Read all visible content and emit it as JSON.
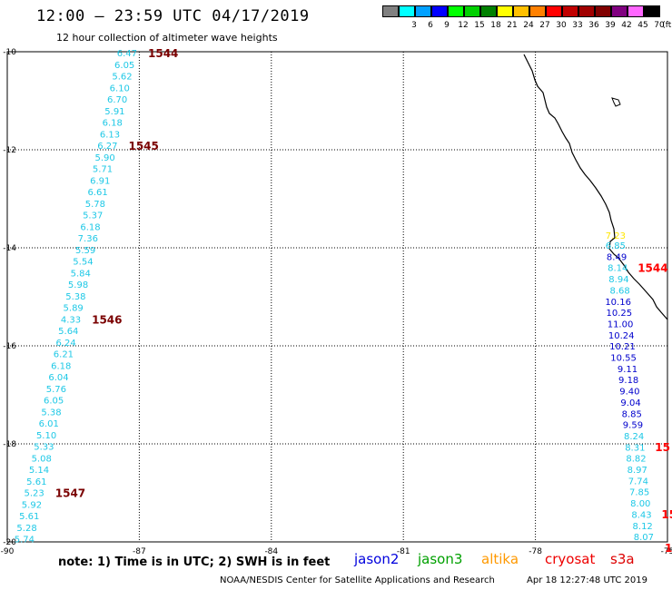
{
  "title": "12:00 – 23:59 UTC 04/17/2019",
  "subtitle": "12 hour collection of altimeter wave heights",
  "colorbar": {
    "unit": "(ft)",
    "colors": [
      "#808080",
      "#00ffff",
      "#00a0ff",
      "#0000ff",
      "#00ff00",
      "#00d000",
      "#008000",
      "#ffff00",
      "#ffc000",
      "#ff8000",
      "#ff0000",
      "#c00000",
      "#a00000",
      "#800000",
      "#800080",
      "#ff66ff",
      "#000000"
    ],
    "labels": [
      "",
      "3",
      "6",
      "9",
      "12",
      "15",
      "18",
      "21",
      "24",
      "27",
      "30",
      "33",
      "36",
      "39",
      "42",
      "45",
      "70"
    ]
  },
  "map": {
    "lon_ticks": [
      "-90",
      "-87",
      "-84",
      "-81",
      "-78",
      "-75"
    ],
    "lat_ticks": [
      "-10",
      "-12",
      "-14",
      "-16",
      "-18",
      "-20"
    ],
    "lon_range": [
      -90,
      -75
    ],
    "lat_range": [
      -10,
      -20
    ]
  },
  "track_left": {
    "color": "#1ec8e6",
    "values": [
      "6.47",
      "6.05",
      "5.62",
      "6.10",
      "6.70",
      "5.91",
      "6.18",
      "6.13",
      "6.27",
      "5.90",
      "5.71",
      "6.91",
      "6.61",
      "5.78",
      "5.37",
      "6.18",
      "7.36",
      "5.59",
      "5.54",
      "5.84",
      "5.98",
      "5.38",
      "5.89",
      "4.33",
      "5.64",
      "6.24",
      "6.21",
      "6.18",
      "6.04",
      "5.76",
      "6.05",
      "5.38",
      "6.01",
      "5.10",
      "5.33",
      "5.08",
      "5.14",
      "5.61",
      "5.23",
      "5.92",
      "5.61",
      "5.28",
      "5.74"
    ],
    "times": [
      {
        "label": "1544",
        "row": 0
      },
      {
        "label": "1545",
        "row": 8
      },
      {
        "label": "1546",
        "row": 23
      },
      {
        "label": "1547",
        "row": 38
      }
    ],
    "time_color": "#7a0000"
  },
  "track_right": {
    "values": [
      "6.85",
      "8.49",
      "8.14",
      "8.94",
      "8.68",
      "10.16",
      "10.25",
      "11.00",
      "10.24",
      "10.21",
      "10.55",
      "9.11",
      "9.18",
      "9.40",
      "9.04",
      "8.85",
      "9.59",
      "8.24",
      "8.31",
      "8.82",
      "8.97",
      "7.74",
      "7.85",
      "8.00",
      "8.43",
      "8.12",
      "8.07"
    ],
    "colors": [
      "#1ec8e6",
      "#0000cc",
      "#1ec8e6",
      "#1ec8e6",
      "#1ec8e6",
      "#0000cc",
      "#0000cc",
      "#0000cc",
      "#0000cc",
      "#0000cc",
      "#0000cc",
      "#0000cc",
      "#0000cc",
      "#0000cc",
      "#0000cc",
      "#0000cc",
      "#0000cc",
      "#1ec8e6",
      "#1ec8e6",
      "#1ec8e6",
      "#1ec8e6",
      "#1ec8e6",
      "#1ec8e6",
      "#1ec8e6",
      "#1ec8e6",
      "#1ec8e6",
      "#1ec8e6"
    ],
    "top_value": "7.23",
    "top_color": "#ffe600",
    "times": [
      {
        "label": "1544",
        "row": 1
      },
      {
        "label": "15",
        "row": 17
      },
      {
        "label": "15",
        "row": 23
      },
      {
        "label": "1",
        "row": 26
      }
    ],
    "time_color": "#ff0000"
  },
  "footer": {
    "note": "note:  1) Time is in UTC;  2) SWH is in feet",
    "missions": [
      {
        "name": "jason2",
        "color": "#0000dd"
      },
      {
        "name": "jason3",
        "color": "#00a000"
      },
      {
        "name": "altika",
        "color": "#ff9900"
      },
      {
        "name": "cryosat",
        "color": "#ee0000"
      },
      {
        "name": "s3a",
        "color": "#dd0000"
      }
    ],
    "credit": "NOAA/NESDIS Center for Satellite Applications and Research",
    "timestamp": "Apr 18 12:27:48 UTC 2019"
  }
}
